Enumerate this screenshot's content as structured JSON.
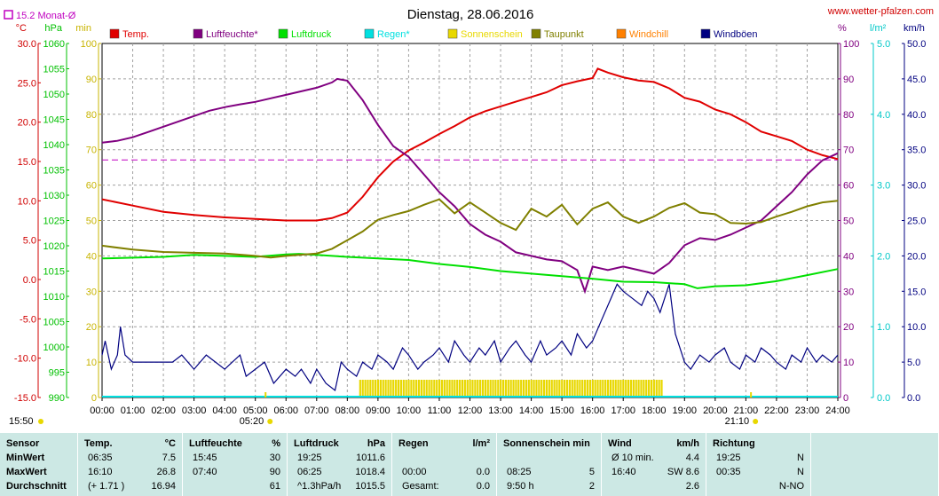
{
  "colors": {
    "temp": "#e00000",
    "humidity": "#800080",
    "pressure": "#00e000",
    "rain": "#00e0e0",
    "sunshine": "#e8d800",
    "dewpoint": "#808000",
    "windchill": "#ff8000",
    "gust": "#000080",
    "month_avg": "#c000c0"
  },
  "header": {
    "title": "Dienstag, 28.06.2016",
    "site": "www.wetter-pfalzen.com",
    "month_avg_label": "15.2 Monat-Ø"
  },
  "axes": {
    "temp": {
      "unit": "°C",
      "ticks": [
        "30.0",
        "25.0",
        "20.0",
        "15.0",
        "10.0",
        "5.0",
        "0.0",
        "-5.0",
        "-10.0",
        "-15.0"
      ]
    },
    "pressure": {
      "unit": "hPa",
      "ticks": [
        "1060",
        "1055",
        "1050",
        "1045",
        "1040",
        "1035",
        "1030",
        "1025",
        "1020",
        "1015",
        "1010",
        "1005",
        "1000",
        "995",
        "990"
      ]
    },
    "minutes": {
      "unit": "min",
      "ticks": [
        "100",
        "90",
        "80",
        "70",
        "60",
        "50",
        "40",
        "30",
        "20",
        "10",
        "0"
      ]
    },
    "percent": {
      "unit": "%",
      "ticks": [
        "100",
        "90",
        "80",
        "70",
        "60",
        "50",
        "40",
        "30",
        "20",
        "10",
        "0"
      ]
    },
    "rain": {
      "unit": "l/m²",
      "ticks": [
        "5.0",
        "4.0",
        "3.0",
        "2.0",
        "1.0",
        "0.0"
      ]
    },
    "wind": {
      "unit": "km/h",
      "ticks": [
        "50.0",
        "45.0",
        "40.0",
        "35.0",
        "30.0",
        "25.0",
        "20.0",
        "15.0",
        "10.0",
        "5.0",
        "0.0"
      ]
    },
    "time": {
      "ticks": [
        "00:00",
        "01:00",
        "02:00",
        "03:00",
        "04:00",
        "05:00",
        "06:00",
        "07:00",
        "08:00",
        "09:00",
        "10:00",
        "11:00",
        "12:00",
        "13:00",
        "14:00",
        "15:00",
        "16:00",
        "17:00",
        "18:00",
        "19:00",
        "20:00",
        "21:00",
        "22:00",
        "23:00",
        "24:00"
      ]
    },
    "sunrise": "05:20",
    "sunset": "21:10",
    "daylength": "15:50"
  },
  "legend": [
    {
      "key": "temp",
      "label": "Temp."
    },
    {
      "key": "humidity",
      "label": "Luftfeuchte*"
    },
    {
      "key": "pressure",
      "label": "Luftdruck"
    },
    {
      "key": "rain",
      "label": "Regen*"
    },
    {
      "key": "sunshine",
      "label": "Sonnenschein"
    },
    {
      "key": "dewpoint",
      "label": "Taupunkt"
    },
    {
      "key": "windchill",
      "label": "Windchill"
    },
    {
      "key": "gust",
      "label": "Windböen"
    }
  ],
  "chart_data": {
    "type": "line",
    "x_unit": "hour",
    "month_avg_temp": 15.2,
    "sunshine_intervals": [
      [
        8.42,
        18.3
      ]
    ],
    "series": [
      {
        "key": "temp",
        "points": [
          [
            0,
            10.2
          ],
          [
            1,
            9.4
          ],
          [
            2,
            8.6
          ],
          [
            3,
            8.2
          ],
          [
            4,
            7.9
          ],
          [
            5,
            7.7
          ],
          [
            6,
            7.5
          ],
          [
            7,
            7.5
          ],
          [
            7.5,
            7.8
          ],
          [
            8,
            8.5
          ],
          [
            8.5,
            10.5
          ],
          [
            9,
            13
          ],
          [
            9.5,
            15
          ],
          [
            10,
            16.4
          ],
          [
            10.5,
            17.4
          ],
          [
            11,
            18.5
          ],
          [
            11.5,
            19.5
          ],
          [
            12,
            20.6
          ],
          [
            12.5,
            21.4
          ],
          [
            13,
            22
          ],
          [
            13.5,
            22.6
          ],
          [
            14,
            23.2
          ],
          [
            14.5,
            23.8
          ],
          [
            15,
            24.7
          ],
          [
            15.5,
            25.2
          ],
          [
            16,
            25.6
          ],
          [
            16.17,
            26.8
          ],
          [
            16.5,
            26.3
          ],
          [
            17,
            25.7
          ],
          [
            17.5,
            25.3
          ],
          [
            18,
            25.1
          ],
          [
            18.5,
            24.3
          ],
          [
            19,
            23.1
          ],
          [
            19.5,
            22.6
          ],
          [
            20,
            21.6
          ],
          [
            20.5,
            21
          ],
          [
            21,
            20
          ],
          [
            21.5,
            18.8
          ],
          [
            22,
            18.2
          ],
          [
            22.5,
            17.6
          ],
          [
            23,
            16.5
          ],
          [
            23.5,
            15.8
          ],
          [
            24,
            15.3
          ]
        ]
      },
      {
        "key": "humidity",
        "points": [
          [
            0,
            72
          ],
          [
            0.5,
            72.5
          ],
          [
            1,
            73.5
          ],
          [
            1.5,
            75
          ],
          [
            2,
            76.5
          ],
          [
            2.5,
            78
          ],
          [
            3,
            79.5
          ],
          [
            3.5,
            81
          ],
          [
            4,
            82
          ],
          [
            4.5,
            82.8
          ],
          [
            5,
            83.5
          ],
          [
            5.5,
            84.5
          ],
          [
            6,
            85.5
          ],
          [
            6.5,
            86.5
          ],
          [
            7,
            87.5
          ],
          [
            7.5,
            89
          ],
          [
            7.67,
            90
          ],
          [
            8,
            89.5
          ],
          [
            8.5,
            84
          ],
          [
            9,
            77
          ],
          [
            9.5,
            71
          ],
          [
            10,
            68
          ],
          [
            10.5,
            63
          ],
          [
            11,
            58
          ],
          [
            11.5,
            54
          ],
          [
            12,
            49
          ],
          [
            12.5,
            46
          ],
          [
            13,
            44
          ],
          [
            13.5,
            41
          ],
          [
            14,
            40
          ],
          [
            14.5,
            39
          ],
          [
            15,
            38.5
          ],
          [
            15.5,
            36
          ],
          [
            15.75,
            30
          ],
          [
            16,
            37
          ],
          [
            16.5,
            36
          ],
          [
            17,
            37
          ],
          [
            17.5,
            36
          ],
          [
            18,
            35
          ],
          [
            18.5,
            38
          ],
          [
            19,
            43
          ],
          [
            19.5,
            45
          ],
          [
            20,
            44.5
          ],
          [
            20.5,
            46
          ],
          [
            21,
            48
          ],
          [
            21.5,
            50
          ],
          [
            22,
            54
          ],
          [
            22.5,
            58
          ],
          [
            23,
            63
          ],
          [
            23.5,
            67
          ],
          [
            24,
            69
          ]
        ]
      },
      {
        "key": "pressure",
        "points": [
          [
            0,
            1017.5
          ],
          [
            2,
            1017.8
          ],
          [
            3,
            1018.2
          ],
          [
            4,
            1018.0
          ],
          [
            5,
            1017.8
          ],
          [
            6,
            1018.3
          ],
          [
            6.42,
            1018.4
          ],
          [
            7,
            1018.2
          ],
          [
            8,
            1017.8
          ],
          [
            9,
            1017.5
          ],
          [
            10,
            1017.2
          ],
          [
            11,
            1016.4
          ],
          [
            12,
            1015.8
          ],
          [
            13,
            1015.0
          ],
          [
            14,
            1014.5
          ],
          [
            15,
            1014.0
          ],
          [
            16,
            1013.5
          ],
          [
            17,
            1012.9
          ],
          [
            18,
            1012.8
          ],
          [
            19,
            1012.4
          ],
          [
            19.42,
            1011.6
          ],
          [
            20,
            1012.0
          ],
          [
            21,
            1012.2
          ],
          [
            22,
            1013.0
          ],
          [
            23,
            1014.2
          ],
          [
            24,
            1015.4
          ]
        ]
      },
      {
        "key": "dewpoint",
        "points": [
          [
            0,
            4.3
          ],
          [
            1,
            3.8
          ],
          [
            2,
            3.5
          ],
          [
            3,
            3.4
          ],
          [
            4,
            3.3
          ],
          [
            5,
            3
          ],
          [
            5.5,
            2.8
          ],
          [
            6,
            3
          ],
          [
            7,
            3.3
          ],
          [
            7.5,
            3.9
          ],
          [
            8,
            5
          ],
          [
            8.5,
            6.1
          ],
          [
            9,
            7.6
          ],
          [
            9.5,
            8.2
          ],
          [
            10,
            8.7
          ],
          [
            10.5,
            9.5
          ],
          [
            11,
            10.2
          ],
          [
            11.5,
            8.4
          ],
          [
            12,
            9.8
          ],
          [
            12.5,
            8.5
          ],
          [
            13,
            7.2
          ],
          [
            13.5,
            6.3
          ],
          [
            14,
            9
          ],
          [
            14.5,
            8
          ],
          [
            15,
            9.5
          ],
          [
            15.5,
            7
          ],
          [
            16,
            9
          ],
          [
            16.5,
            9.8
          ],
          [
            17,
            8
          ],
          [
            17.5,
            7.2
          ],
          [
            18,
            8
          ],
          [
            18.5,
            9.1
          ],
          [
            19,
            9.7
          ],
          [
            19.5,
            8.5
          ],
          [
            20,
            8.3
          ],
          [
            20.5,
            7.2
          ],
          [
            21,
            7.1
          ],
          [
            21.5,
            7.3
          ],
          [
            22,
            8
          ],
          [
            22.5,
            8.6
          ],
          [
            23,
            9.3
          ],
          [
            23.5,
            9.8
          ],
          [
            24,
            10
          ]
        ]
      },
      {
        "key": "gust",
        "points": [
          [
            0,
            6
          ],
          [
            0.1,
            8
          ],
          [
            0.3,
            4
          ],
          [
            0.5,
            6
          ],
          [
            0.6,
            10
          ],
          [
            0.75,
            6
          ],
          [
            1,
            5
          ],
          [
            1.5,
            5
          ],
          [
            2,
            5
          ],
          [
            2.3,
            5
          ],
          [
            2.6,
            6
          ],
          [
            3,
            4
          ],
          [
            3.4,
            6
          ],
          [
            3.7,
            5
          ],
          [
            4,
            4
          ],
          [
            4.5,
            6
          ],
          [
            4.7,
            3
          ],
          [
            5,
            4
          ],
          [
            5.3,
            5
          ],
          [
            5.6,
            2
          ],
          [
            6,
            4
          ],
          [
            6.3,
            3
          ],
          [
            6.5,
            4
          ],
          [
            6.8,
            2
          ],
          [
            7,
            4
          ],
          [
            7.3,
            2
          ],
          [
            7.6,
            1
          ],
          [
            7.8,
            5
          ],
          [
            8,
            4
          ],
          [
            8.3,
            3
          ],
          [
            8.5,
            5
          ],
          [
            8.8,
            4
          ],
          [
            9,
            6
          ],
          [
            9.3,
            5
          ],
          [
            9.5,
            4
          ],
          [
            9.8,
            7
          ],
          [
            10,
            6
          ],
          [
            10.3,
            4
          ],
          [
            10.5,
            5
          ],
          [
            10.8,
            6
          ],
          [
            11,
            7
          ],
          [
            11.3,
            5
          ],
          [
            11.5,
            8
          ],
          [
            11.8,
            6
          ],
          [
            12,
            5
          ],
          [
            12.3,
            7
          ],
          [
            12.5,
            6
          ],
          [
            12.8,
            8
          ],
          [
            13,
            5
          ],
          [
            13.3,
            7
          ],
          [
            13.5,
            8
          ],
          [
            13.8,
            6
          ],
          [
            14,
            5
          ],
          [
            14.3,
            8
          ],
          [
            14.5,
            6
          ],
          [
            14.8,
            7
          ],
          [
            15,
            8
          ],
          [
            15.3,
            6
          ],
          [
            15.5,
            9
          ],
          [
            15.8,
            7
          ],
          [
            16,
            8
          ],
          [
            16.3,
            11
          ],
          [
            16.6,
            14
          ],
          [
            16.8,
            16
          ],
          [
            17,
            15
          ],
          [
            17.3,
            14
          ],
          [
            17.6,
            13
          ],
          [
            17.8,
            15
          ],
          [
            18,
            14
          ],
          [
            18.2,
            12
          ],
          [
            18.5,
            16
          ],
          [
            18.7,
            9
          ],
          [
            19,
            5
          ],
          [
            19.2,
            4
          ],
          [
            19.5,
            6
          ],
          [
            19.8,
            5
          ],
          [
            20,
            6
          ],
          [
            20.3,
            7
          ],
          [
            20.5,
            5
          ],
          [
            20.8,
            4
          ],
          [
            21,
            6
          ],
          [
            21.3,
            5
          ],
          [
            21.5,
            7
          ],
          [
            21.8,
            6
          ],
          [
            22,
            5
          ],
          [
            22.3,
            4
          ],
          [
            22.5,
            6
          ],
          [
            22.8,
            5
          ],
          [
            23,
            7
          ],
          [
            23.3,
            5
          ],
          [
            23.5,
            6
          ],
          [
            23.8,
            5
          ],
          [
            24,
            6
          ]
        ]
      }
    ]
  },
  "table": {
    "rows": [
      "Sensor",
      "MinWert",
      "MaxWert",
      "Durchschnitt"
    ],
    "temp": {
      "h": "Temp.",
      "u": "°C",
      "min_t": "06:35",
      "min_v": "7.5",
      "max_t": "16:10",
      "max_v": "26.8",
      "avg_t": "(+ 1.71 )",
      "avg_v": "16.94"
    },
    "hum": {
      "h": "Luftfeuchte",
      "u": "%",
      "min_t": "15:45",
      "min_v": "30",
      "max_t": "07:40",
      "max_v": "90",
      "avg_v": "61"
    },
    "pres": {
      "h": "Luftdruck",
      "u": "hPa",
      "min_t": "19:25",
      "min_v": "1011.6",
      "max_t": "06:25",
      "max_v": "1018.4",
      "avg_t": "^1.3hPa/h",
      "avg_v": "1015.5"
    },
    "rain": {
      "h": "Regen",
      "u": "l/m²",
      "max_t": "00:00",
      "max_v": "0.0",
      "avg_t": "Gesamt:",
      "avg_v": "0.0"
    },
    "sun": {
      "h": "Sonnenschein min",
      "max_t": "08:25",
      "max_v": "5",
      "avg_t": "9:50 h",
      "avg_v": "2"
    },
    "wind": {
      "h": "Wind",
      "u": "km/h",
      "min_t": "Ø 10 min.",
      "min_v": "4.4",
      "max_t": "16:40",
      "max_v": "SW 8.6",
      "avg_v": "2.6"
    },
    "dir": {
      "h": "Richtung",
      "min_t": "19:25",
      "min_v": "N",
      "max_t": "00:35",
      "max_v": "N",
      "avg_v": "N-NO"
    }
  }
}
